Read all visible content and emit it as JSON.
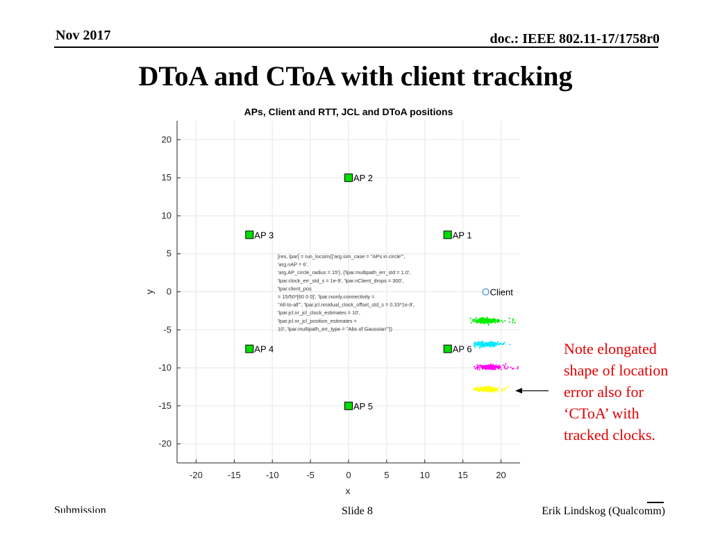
{
  "header": {
    "date": "Nov 2017",
    "doc": "doc.: IEEE 802.11-17/1758r0"
  },
  "slide": {
    "title": "DToA and CToA with client tracking"
  },
  "note": {
    "text": "Note elongated\nshape of location\nerror also for\n‘CToA’ with\ntracked clocks."
  },
  "footer": {
    "left": "Submission",
    "center": "Slide 8",
    "right": "Erik Lindskog (Qualcomm)"
  },
  "colors": {
    "ap_marker": "#00dd00",
    "client_marker": "#4a90d9",
    "cluster_green": "#00ee00",
    "cluster_cyan": "#00e8ff",
    "cluster_magenta": "#ff00ee",
    "cluster_yellow": "#ffff00",
    "note_text": "#e00000",
    "grid": "#e6e6e6"
  },
  "chart_data": {
    "type": "scatter",
    "title": "APs, Client and RTT, JCL and DToA positions",
    "xlabel": "x",
    "ylabel": "y",
    "xlim": [
      -22.5,
      22.5
    ],
    "ylim": [
      -22.5,
      22.5
    ],
    "xticks": [
      -20,
      -15,
      -10,
      -5,
      0,
      5,
      10,
      15,
      20
    ],
    "yticks": [
      20,
      15,
      10,
      5,
      0,
      -5,
      -10,
      -15,
      -20
    ],
    "grid": true,
    "aps": [
      {
        "label": "AP 1",
        "x": 13,
        "y": 7.5
      },
      {
        "label": "AP 2",
        "x": 0,
        "y": 15
      },
      {
        "label": "AP 3",
        "x": -13,
        "y": 7.5
      },
      {
        "label": "AP 4",
        "x": -13,
        "y": -7.5
      },
      {
        "label": "AP 5",
        "x": 0,
        "y": -15
      },
      {
        "label": "AP 6",
        "x": 13,
        "y": -7.5
      }
    ],
    "client": {
      "label": "Client",
      "x": 18,
      "y": 0
    },
    "clusters": [
      {
        "color": "green",
        "center_x": 18,
        "center_y": -3.8,
        "spread_x": 1.8,
        "spread_y": 0.3,
        "x_min": 16.0,
        "x_max": 22.0
      },
      {
        "color": "cyan",
        "center_x": 18,
        "center_y": -6.9,
        "spread_x": 1.7,
        "spread_y": 0.3,
        "x_min": 16.5,
        "x_max": 21.5
      },
      {
        "color": "magenta",
        "center_x": 18.5,
        "center_y": -9.9,
        "spread_x": 1.7,
        "spread_y": 0.3,
        "x_min": 16.5,
        "x_max": 22.5
      },
      {
        "color": "yellow",
        "center_x": 18,
        "center_y": -12.8,
        "spread_x": 1.6,
        "spread_y": 0.3,
        "x_min": 16.5,
        "x_max": 21.5
      }
    ],
    "annotation": [
      "[res, lpar] = run_locsim({'arg.sim_case = ''APs in circle''',",
      "'arg.nAP = 6',",
      "'arg.AP_circle_radius = 15'}, {'lpar.multipath_err_std = 1.0',",
      "'lpar.clock_err_std_s = 1e-9', 'lpar.nClient_drops = 300',",
      "'lpar.client_pos",
      "= 15/50*[60 0 0]', 'lpar.rxonly.connectivity =",
      "''All-to-all''', 'lpar.jcl.residual_clock_offset_std_s = 0.33*1e-9',",
      "'lpar.jcl.nr_jcl_clock_estimates = 10',",
      "'lpar.jcl.nr_jcl_position_estimates =",
      "10', 'lpar.multipath_err_type = ''Abs of Gaussian'''})"
    ]
  }
}
